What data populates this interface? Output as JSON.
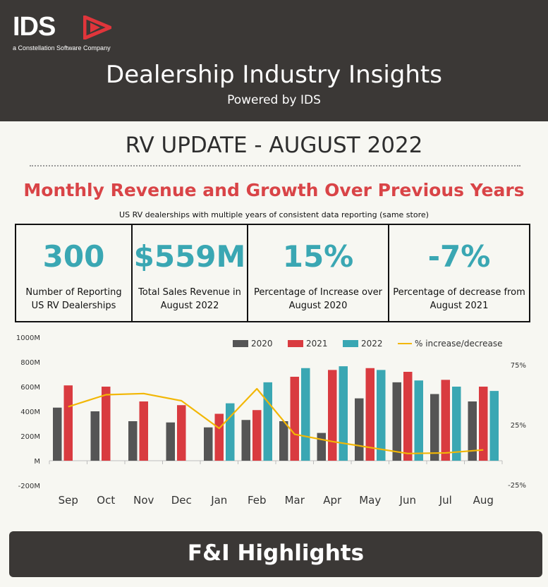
{
  "header": {
    "logo_text": "IDS",
    "logo_sub": "a Constellation Software Company",
    "title": "Dealership Industry Insights",
    "subtitle": "Powered by IDS"
  },
  "update_title": "RV UPDATE - AUGUST 2022",
  "section": {
    "title": "Monthly Revenue and Growth Over Previous Years",
    "subtitle": "US RV dealerships with multiple years of consistent data reporting (same store)"
  },
  "kpis": [
    {
      "value": "300",
      "label": "Number of Reporting US RV Dealerships"
    },
    {
      "value": "$559M",
      "label": "Total Sales Revenue in August 2022"
    },
    {
      "value": "15%",
      "label": "Percentage of Increase over August 2020"
    },
    {
      "value": "-7%",
      "label": "Percentage of decrease from August 2021"
    }
  ],
  "colors": {
    "header_bg": "#3b3836",
    "accent_red": "#d94447",
    "accent_teal": "#3aa7b3",
    "series_2020": "#555555",
    "series_2021": "#d93b40",
    "series_2022": "#3aa7b3",
    "series_pct": "#f2b705"
  },
  "chart_data": {
    "type": "bar",
    "categories": [
      "Sep",
      "Oct",
      "Nov",
      "Dec",
      "Jan",
      "Feb",
      "Mar",
      "Apr",
      "May",
      "Jun",
      "Jul",
      "Aug"
    ],
    "y_ticks": [
      "1000M",
      "800M",
      "600M",
      "400M",
      "200M",
      "M",
      "-200M"
    ],
    "ylim": [
      -200,
      1000
    ],
    "y2_ticks": [
      "75%",
      "25%",
      "-25%"
    ],
    "y2lim": [
      -25,
      75
    ],
    "series": [
      {
        "name": "2020",
        "values": [
          430,
          400,
          320,
          310,
          270,
          330,
          320,
          225,
          505,
          635,
          540,
          480
        ]
      },
      {
        "name": "2021",
        "values": [
          610,
          600,
          480,
          450,
          380,
          410,
          680,
          735,
          750,
          720,
          655,
          600
        ]
      },
      {
        "name": "2022",
        "values": [
          null,
          null,
          null,
          null,
          465,
          635,
          750,
          765,
          735,
          650,
          600,
          565
        ]
      }
    ],
    "line_series": {
      "name": "% increase/decrease",
      "values": [
        40,
        50,
        51,
        45,
        22,
        55,
        17,
        11,
        6,
        1,
        1.5,
        4
      ]
    },
    "legend_position": "top-right",
    "grid": false
  },
  "footer": {
    "title": "F&I Highlights"
  }
}
